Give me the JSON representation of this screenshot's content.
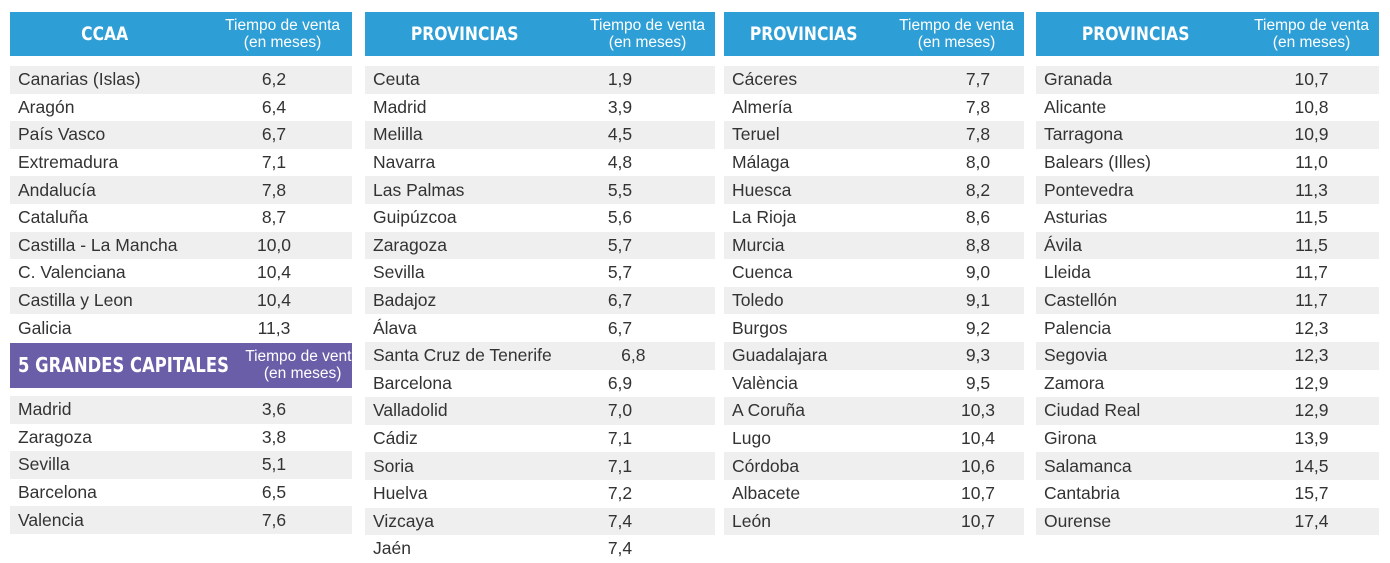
{
  "header_subtitle_line1": "Tiempo de venta",
  "header_subtitle_line2": "(en meses)",
  "ccaa": {
    "title": "CCAA",
    "rows": [
      {
        "name": "Canarias (Islas)",
        "value": "6,2"
      },
      {
        "name": "Aragón",
        "value": "6,4"
      },
      {
        "name": "País Vasco",
        "value": "6,7"
      },
      {
        "name": "Extremadura",
        "value": "7,1"
      },
      {
        "name": "Andalucía",
        "value": "7,8"
      },
      {
        "name": "Cataluña",
        "value": "8,7"
      },
      {
        "name": "Castilla - La Mancha",
        "value": "10,0"
      },
      {
        "name": "C. Valenciana",
        "value": "10,4"
      },
      {
        "name": "Castilla y Leon",
        "value": "10,4"
      },
      {
        "name": "Galicia",
        "value": "11,3"
      }
    ]
  },
  "capitales": {
    "title": "5  GRANDES CAPITALES",
    "rows": [
      {
        "name": "Madrid",
        "value": "3,6"
      },
      {
        "name": "Zaragoza",
        "value": "3,8"
      },
      {
        "name": "Sevilla",
        "value": "5,1"
      },
      {
        "name": "Barcelona",
        "value": "6,5"
      },
      {
        "name": "Valencia",
        "value": "7,6"
      }
    ]
  },
  "provincias_1": {
    "title": "PROVINCIAS",
    "rows": [
      {
        "name": "Ceuta",
        "value": "1,9"
      },
      {
        "name": "Madrid",
        "value": "3,9"
      },
      {
        "name": "Melilla",
        "value": "4,5"
      },
      {
        "name": "Navarra",
        "value": "4,8"
      },
      {
        "name": "Las Palmas",
        "value": "5,5"
      },
      {
        "name": "Guipúzcoa",
        "value": "5,6"
      },
      {
        "name": "Zaragoza",
        "value": "5,7"
      },
      {
        "name": "Sevilla",
        "value": "5,7"
      },
      {
        "name": "Badajoz",
        "value": "6,7"
      },
      {
        "name": "Álava",
        "value": "6,7"
      },
      {
        "name": "Santa Cruz de Tenerife",
        "value": "6,8"
      },
      {
        "name": "Barcelona",
        "value": "6,9"
      },
      {
        "name": "Valladolid",
        "value": "7,0"
      },
      {
        "name": "Cádiz",
        "value": "7,1"
      },
      {
        "name": "Soria",
        "value": "7,1"
      },
      {
        "name": "Huelva",
        "value": "7,2"
      },
      {
        "name": "Vizcaya",
        "value": "7,4"
      },
      {
        "name": "Jaén",
        "value": "7,4"
      }
    ]
  },
  "provincias_2": {
    "title": "PROVINCIAS",
    "rows": [
      {
        "name": "Cáceres",
        "value": "7,7"
      },
      {
        "name": "Almería",
        "value": "7,8"
      },
      {
        "name": "Teruel",
        "value": "7,8"
      },
      {
        "name": "Málaga",
        "value": "8,0"
      },
      {
        "name": "Huesca",
        "value": "8,2"
      },
      {
        "name": "La Rioja",
        "value": "8,6"
      },
      {
        "name": "Murcia",
        "value": "8,8"
      },
      {
        "name": "Cuenca",
        "value": "9,0"
      },
      {
        "name": "Toledo",
        "value": "9,1"
      },
      {
        "name": "Burgos",
        "value": "9,2"
      },
      {
        "name": "Guadalajara",
        "value": "9,3"
      },
      {
        "name": "València",
        "value": "9,5"
      },
      {
        "name": "A Coruña",
        "value": "10,3"
      },
      {
        "name": "Lugo",
        "value": "10,4"
      },
      {
        "name": "Córdoba",
        "value": "10,6"
      },
      {
        "name": "Albacete",
        "value": "10,7"
      },
      {
        "name": "León",
        "value": "10,7"
      }
    ]
  },
  "provincias_3": {
    "title": "PROVINCIAS",
    "rows": [
      {
        "name": "Granada",
        "value": "10,7"
      },
      {
        "name": "Alicante",
        "value": "10,8"
      },
      {
        "name": "Tarragona",
        "value": "10,9"
      },
      {
        "name": "Balears (Illes)",
        "value": "11,0"
      },
      {
        "name": "Pontevedra",
        "value": "11,3"
      },
      {
        "name": "Asturias",
        "value": "11,5"
      },
      {
        "name": "Ávila",
        "value": "11,5"
      },
      {
        "name": "Lleida",
        "value": "11,7"
      },
      {
        "name": "Castellón",
        "value": "11,7"
      },
      {
        "name": "Palencia",
        "value": "12,3"
      },
      {
        "name": "Segovia",
        "value": "12,3"
      },
      {
        "name": "Zamora",
        "value": "12,9"
      },
      {
        "name": "Ciudad Real",
        "value": "12,9"
      },
      {
        "name": "Girona",
        "value": "13,9"
      },
      {
        "name": "Salamanca",
        "value": "14,5"
      },
      {
        "name": "Cantabria",
        "value": "15,7"
      },
      {
        "name": "Ourense",
        "value": "17,4"
      }
    ]
  }
}
